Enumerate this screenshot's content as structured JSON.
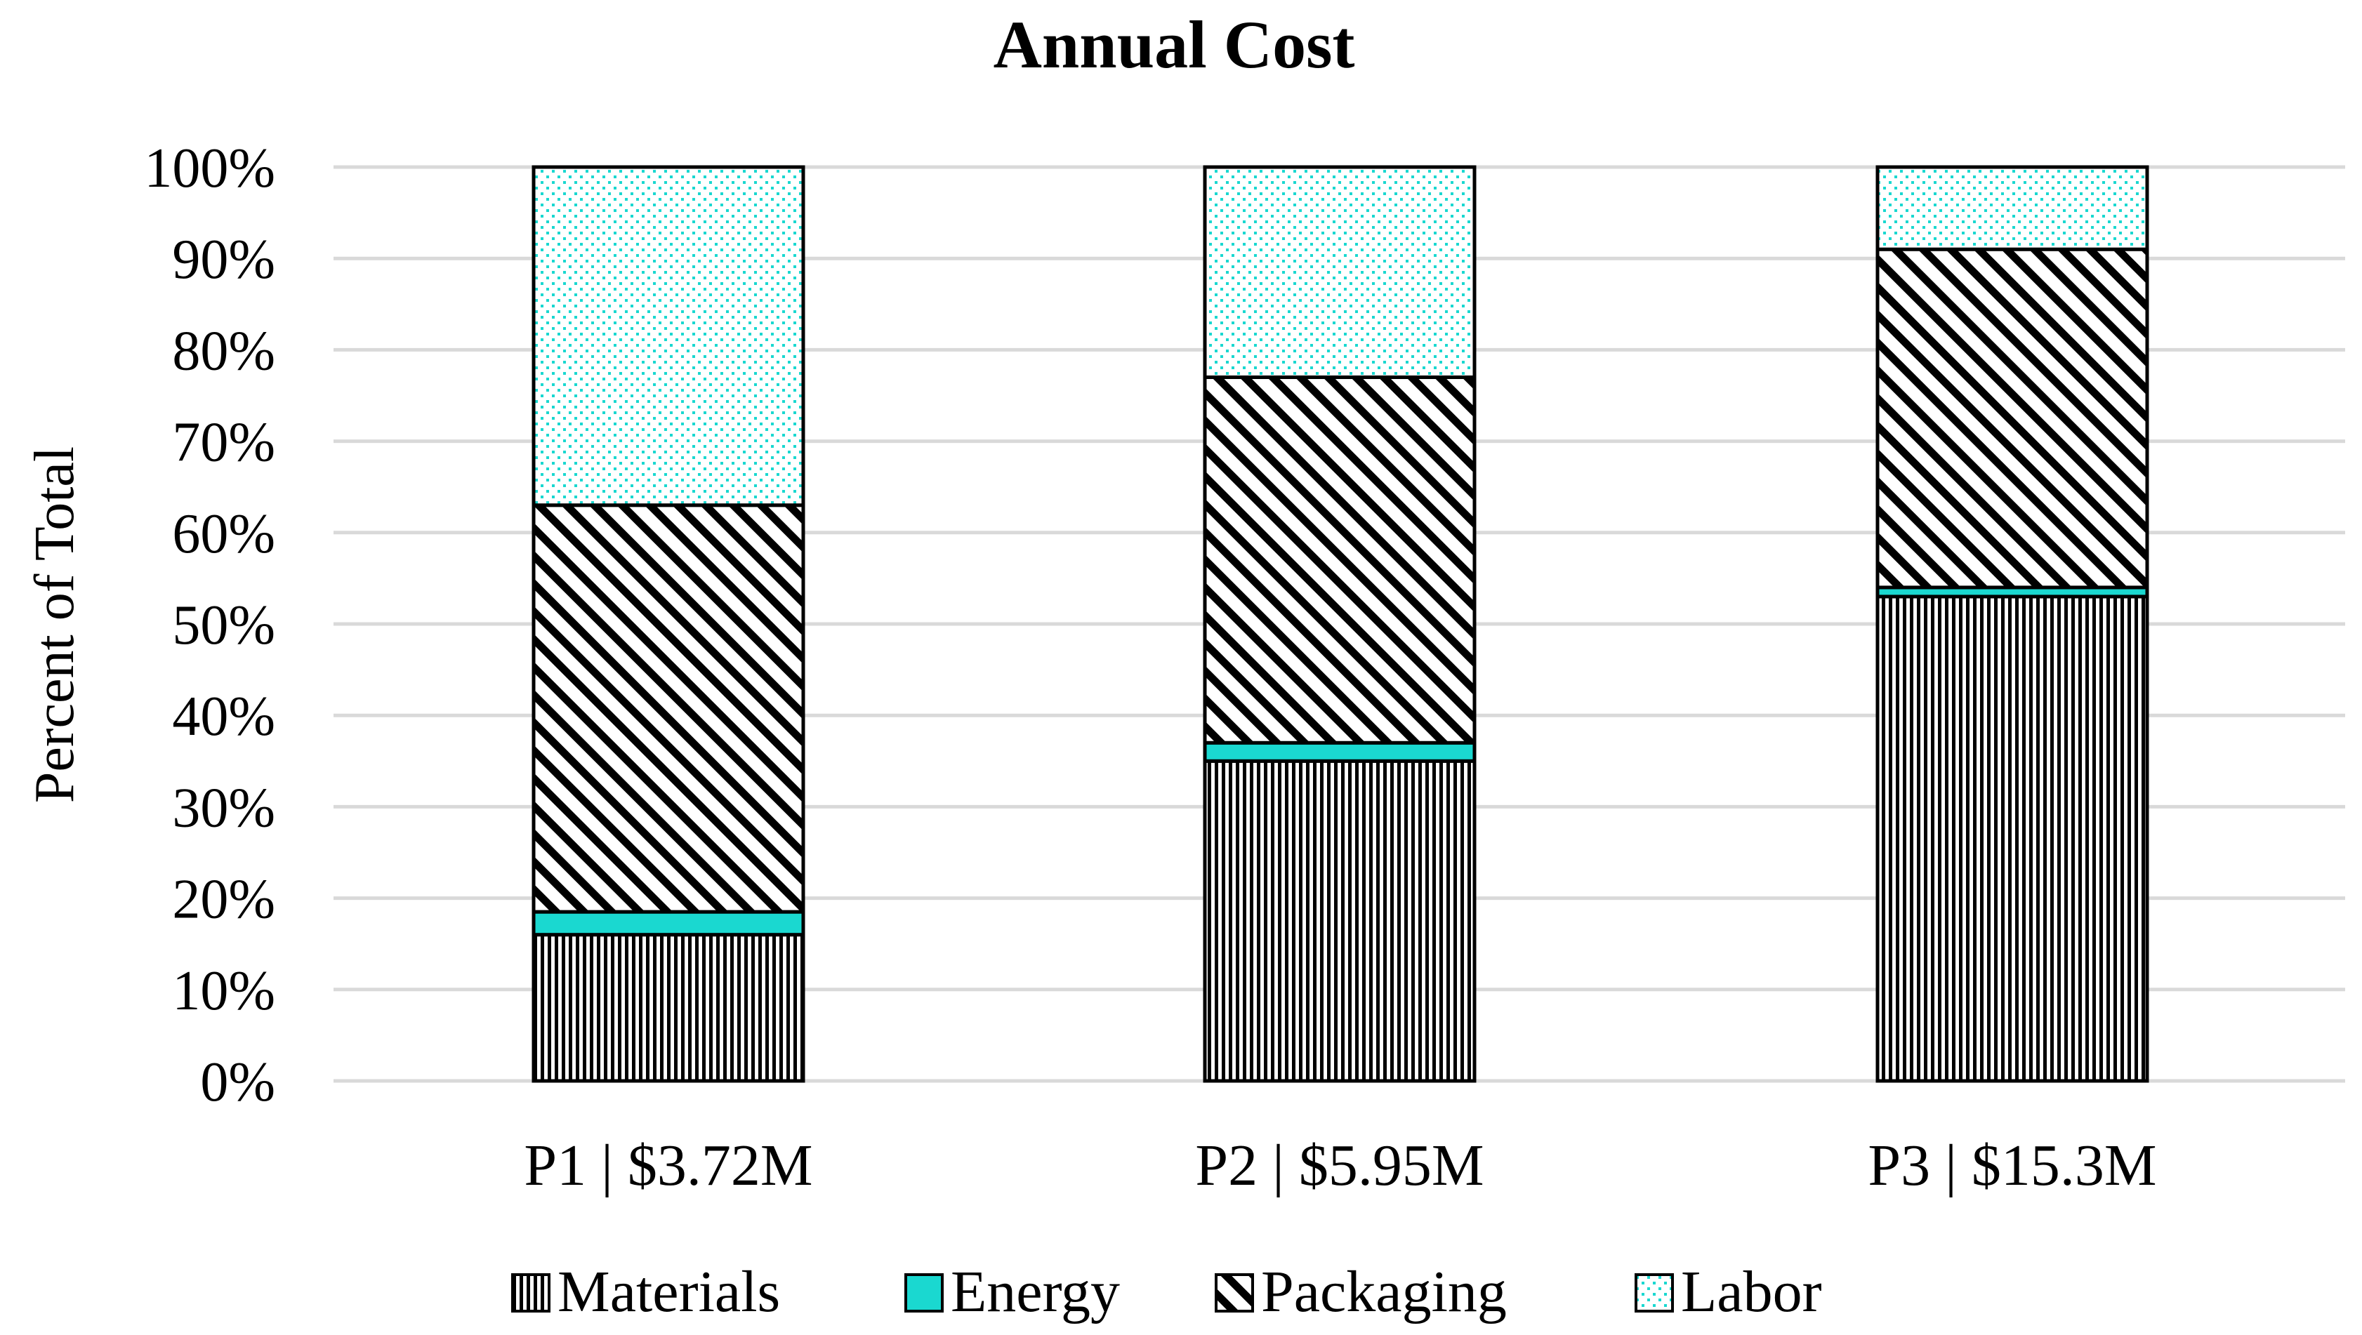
{
  "chart_data": {
    "type": "bar",
    "stacked": true,
    "title": "Annual Cost",
    "xlabel": "",
    "ylabel": "Percent of Total",
    "ylim": [
      0,
      100
    ],
    "yticks": [
      "0%",
      "10%",
      "20%",
      "30%",
      "40%",
      "50%",
      "60%",
      "70%",
      "80%",
      "90%",
      "100%"
    ],
    "categories": [
      "P1 | $3.72M",
      "P2 | $5.95M",
      "P3 | $15.3M"
    ],
    "series": [
      {
        "name": "Materials",
        "values": [
          16,
          35,
          53
        ],
        "pattern": "vertical",
        "color": "#000000"
      },
      {
        "name": "Energy",
        "values": [
          2.5,
          2,
          1
        ],
        "pattern": "solid",
        "color": "#1ad8d0"
      },
      {
        "name": "Packaging",
        "values": [
          44.5,
          40,
          37
        ],
        "pattern": "diagonal",
        "color": "#000000"
      },
      {
        "name": "Labor",
        "values": [
          37,
          23,
          9
        ],
        "pattern": "dots",
        "color": "#1ad8d0"
      }
    ],
    "grid": true,
    "legend": "bottom"
  }
}
